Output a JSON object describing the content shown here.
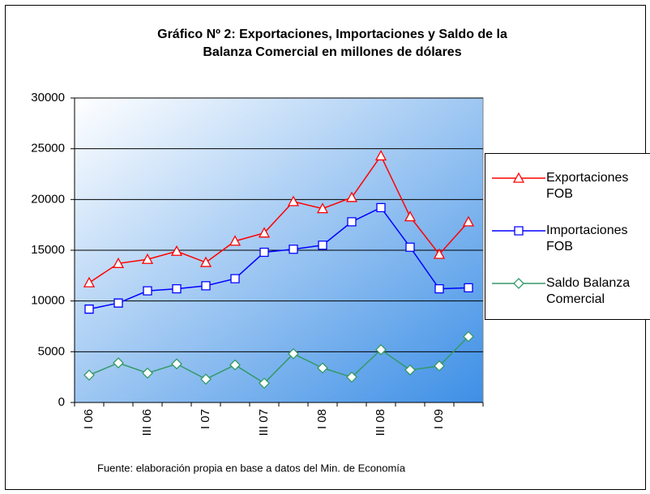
{
  "chart_data": {
    "type": "line",
    "title": [
      "Gráfico Nº 2:  Exportaciones, Importaciones y Saldo de la",
      "Balanza Comercial en millones de dólares"
    ],
    "source": "Fuente: elaboración propia en base a datos del Min. de Economía",
    "categories": [
      "I 06",
      null,
      "III 06",
      null,
      "I 07",
      null,
      "III 07",
      null,
      "I 08",
      null,
      "III 08",
      null,
      "I 09",
      null
    ],
    "series": [
      {
        "name": "Exportaciones FOB",
        "color": "#ff0000",
        "marker": "triangle",
        "values": [
          11800,
          13700,
          14100,
          14900,
          13800,
          15900,
          16700,
          19800,
          19100,
          20200,
          24300,
          18300,
          14600,
          17800
        ]
      },
      {
        "name": "Importaciones FOB",
        "color": "#0000ff",
        "marker": "square",
        "values": [
          9200,
          9800,
          11000,
          11200,
          11500,
          12200,
          14800,
          15100,
          15500,
          17800,
          19200,
          15300,
          11200,
          11300
        ]
      },
      {
        "name": "Saldo Balanza Comercial",
        "color": "#339966",
        "marker": "diamond",
        "values": [
          2700,
          3900,
          2900,
          3800,
          2300,
          3700,
          1900,
          4800,
          3400,
          2500,
          5200,
          3200,
          3600,
          6500
        ]
      }
    ],
    "ylim": [
      0,
      30000
    ],
    "yticks": [
      0,
      5000,
      10000,
      15000,
      20000,
      25000,
      30000
    ],
    "grid": true
  }
}
